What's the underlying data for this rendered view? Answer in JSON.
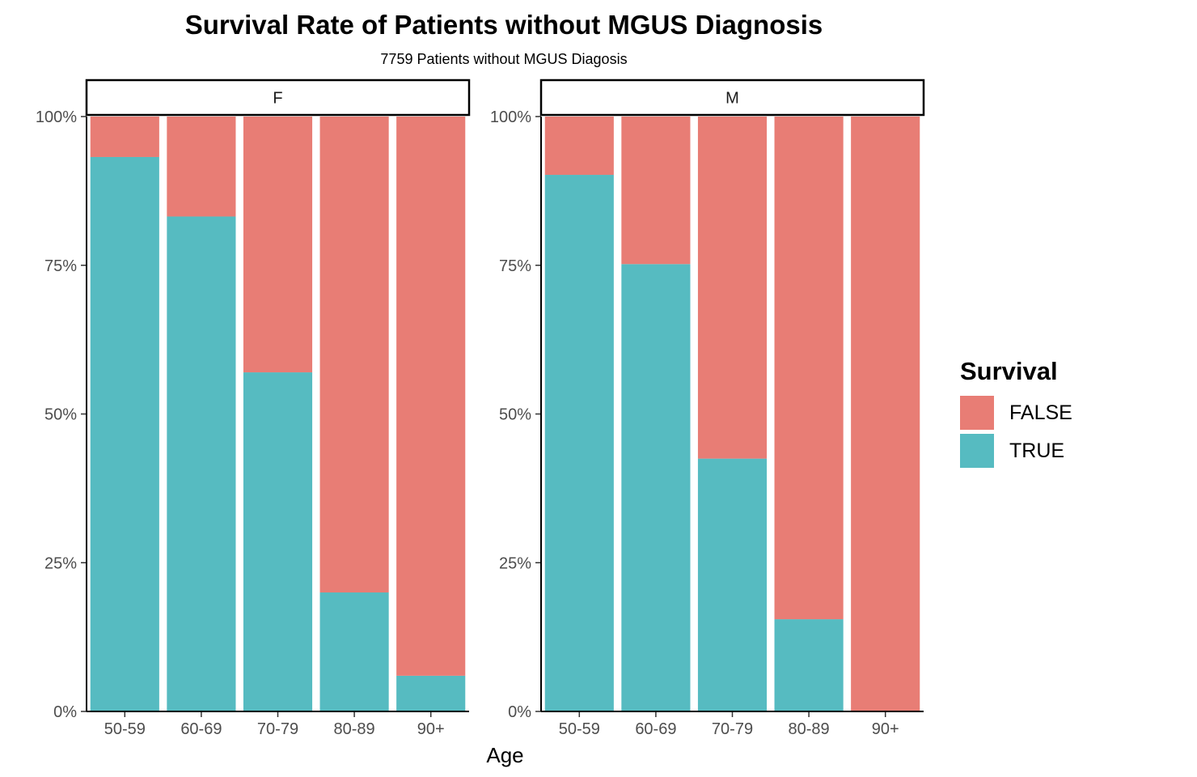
{
  "chart_data": {
    "type": "bar",
    "stacked": true,
    "title": "Survival Rate of Patients without MGUS Diagnosis",
    "subtitle": "7759 Patients without MGUS Diagosis",
    "xlabel": "Age",
    "ylabel": "",
    "ylim": [
      0,
      1
    ],
    "yticks": [
      "0%",
      "25%",
      "50%",
      "75%",
      "100%"
    ],
    "categories": [
      "50-59",
      "60-69",
      "70-79",
      "80-89",
      "90+"
    ],
    "facets": [
      {
        "label": "F",
        "series": [
          {
            "name": "FALSE",
            "values": [
              0.068,
              0.168,
              0.43,
              0.8,
              0.94
            ]
          },
          {
            "name": "TRUE",
            "values": [
              0.932,
              0.832,
              0.57,
              0.2,
              0.06
            ]
          }
        ]
      },
      {
        "label": "M",
        "series": [
          {
            "name": "FALSE",
            "values": [
              0.098,
              0.248,
              0.575,
              0.845,
              1.0
            ]
          },
          {
            "name": "TRUE",
            "values": [
              0.902,
              0.752,
              0.425,
              0.155,
              0.0
            ]
          }
        ]
      }
    ],
    "legend": {
      "title": "Survival",
      "position": "right",
      "entries": [
        {
          "label": "FALSE",
          "color": "#E87D75"
        },
        {
          "label": "TRUE",
          "color": "#56BBC1"
        }
      ]
    },
    "grid": false
  }
}
